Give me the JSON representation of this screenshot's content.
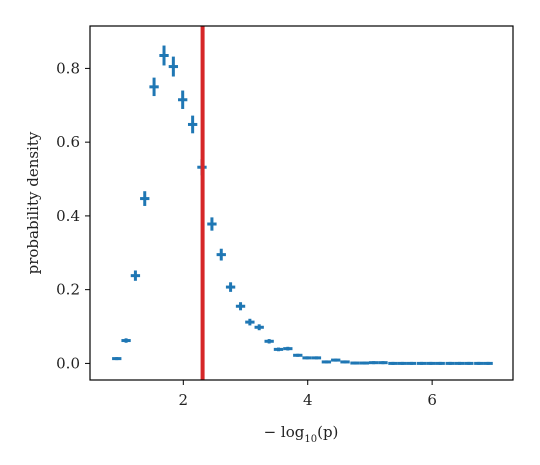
{
  "chart_data": {
    "type": "scatter",
    "title": "",
    "xlabel": "− log10(p)",
    "xlabel_parts": {
      "prefix": "− log",
      "sub": "10",
      "suffix": "(p)"
    },
    "ylabel": "probability density",
    "xlim": [
      0.5,
      7.3
    ],
    "ylim": [
      -0.045,
      0.915
    ],
    "xticks": [
      2,
      4,
      6
    ],
    "yticks": [
      0.0,
      0.2,
      0.4,
      0.6,
      0.8
    ],
    "xtick_labels": [
      "2",
      "4",
      "6"
    ],
    "ytick_labels": [
      "0.0",
      "0.2",
      "0.4",
      "0.6",
      "0.8"
    ],
    "grid": false,
    "series": [
      {
        "color": "#1f77b4",
        "points": [
          {
            "x": 0.93,
            "y": 0.013,
            "xerr": 0.075,
            "yerr": 0.003
          },
          {
            "x": 1.08,
            "y": 0.062,
            "xerr": 0.075,
            "yerr": 0.006
          },
          {
            "x": 1.23,
            "y": 0.238,
            "xerr": 0.075,
            "yerr": 0.014
          },
          {
            "x": 1.38,
            "y": 0.447,
            "xerr": 0.075,
            "yerr": 0.02
          },
          {
            "x": 1.53,
            "y": 0.75,
            "xerr": 0.075,
            "yerr": 0.025
          },
          {
            "x": 1.69,
            "y": 0.835,
            "xerr": 0.075,
            "yerr": 0.027
          },
          {
            "x": 1.84,
            "y": 0.805,
            "xerr": 0.075,
            "yerr": 0.027
          },
          {
            "x": 1.99,
            "y": 0.715,
            "xerr": 0.075,
            "yerr": 0.025
          },
          {
            "x": 2.15,
            "y": 0.648,
            "xerr": 0.075,
            "yerr": 0.024
          },
          {
            "x": 2.3,
            "y": 0.532,
            "xerr": 0.075,
            "yerr": 0.022
          },
          {
            "x": 2.46,
            "y": 0.378,
            "xerr": 0.075,
            "yerr": 0.018
          },
          {
            "x": 2.61,
            "y": 0.295,
            "xerr": 0.075,
            "yerr": 0.016
          },
          {
            "x": 2.76,
            "y": 0.207,
            "xerr": 0.075,
            "yerr": 0.013
          },
          {
            "x": 2.92,
            "y": 0.155,
            "xerr": 0.075,
            "yerr": 0.011
          },
          {
            "x": 3.07,
            "y": 0.112,
            "xerr": 0.075,
            "yerr": 0.009
          },
          {
            "x": 3.22,
            "y": 0.098,
            "xerr": 0.075,
            "yerr": 0.008
          },
          {
            "x": 3.38,
            "y": 0.06,
            "xerr": 0.075,
            "yerr": 0.006
          },
          {
            "x": 3.53,
            "y": 0.038,
            "xerr": 0.075,
            "yerr": 0.005
          },
          {
            "x": 3.68,
            "y": 0.04,
            "xerr": 0.075,
            "yerr": 0.005
          },
          {
            "x": 3.84,
            "y": 0.022,
            "xerr": 0.075,
            "yerr": 0.004
          },
          {
            "x": 3.99,
            "y": 0.015,
            "xerr": 0.075,
            "yerr": 0.003
          },
          {
            "x": 4.14,
            "y": 0.015,
            "xerr": 0.075,
            "yerr": 0.003
          },
          {
            "x": 4.3,
            "y": 0.004,
            "xerr": 0.075,
            "yerr": 0.002
          },
          {
            "x": 4.45,
            "y": 0.009,
            "xerr": 0.075,
            "yerr": 0.002
          },
          {
            "x": 4.6,
            "y": 0.004,
            "xerr": 0.075,
            "yerr": 0.002
          },
          {
            "x": 4.76,
            "y": 0.001,
            "xerr": 0.075,
            "yerr": 0.001
          },
          {
            "x": 4.91,
            "y": 0.001,
            "xerr": 0.075,
            "yerr": 0.001
          },
          {
            "x": 5.06,
            "y": 0.002,
            "xerr": 0.075,
            "yerr": 0.001
          },
          {
            "x": 5.21,
            "y": 0.002,
            "xerr": 0.075,
            "yerr": 0.001
          },
          {
            "x": 5.37,
            "y": 0.0,
            "xerr": 0.075,
            "yerr": 0.001
          },
          {
            "x": 5.52,
            "y": 0.0,
            "xerr": 0.075,
            "yerr": 0.001
          },
          {
            "x": 5.67,
            "y": 0.0,
            "xerr": 0.075,
            "yerr": 0.001
          },
          {
            "x": 5.83,
            "y": 0.0,
            "xerr": 0.075,
            "yerr": 0.001
          },
          {
            "x": 5.98,
            "y": 0.0,
            "xerr": 0.075,
            "yerr": 0.001
          },
          {
            "x": 6.13,
            "y": 0.0,
            "xerr": 0.075,
            "yerr": 0.001
          },
          {
            "x": 6.29,
            "y": 0.0,
            "xerr": 0.075,
            "yerr": 0.001
          },
          {
            "x": 6.44,
            "y": 0.0,
            "xerr": 0.075,
            "yerr": 0.001
          },
          {
            "x": 6.59,
            "y": 0.0,
            "xerr": 0.075,
            "yerr": 0.001
          },
          {
            "x": 6.75,
            "y": 0.0,
            "xerr": 0.075,
            "yerr": 0.001
          },
          {
            "x": 6.9,
            "y": 0.0,
            "xerr": 0.075,
            "yerr": 0.001
          }
        ]
      }
    ],
    "vline": {
      "x": 2.31,
      "color": "#d62728"
    }
  }
}
